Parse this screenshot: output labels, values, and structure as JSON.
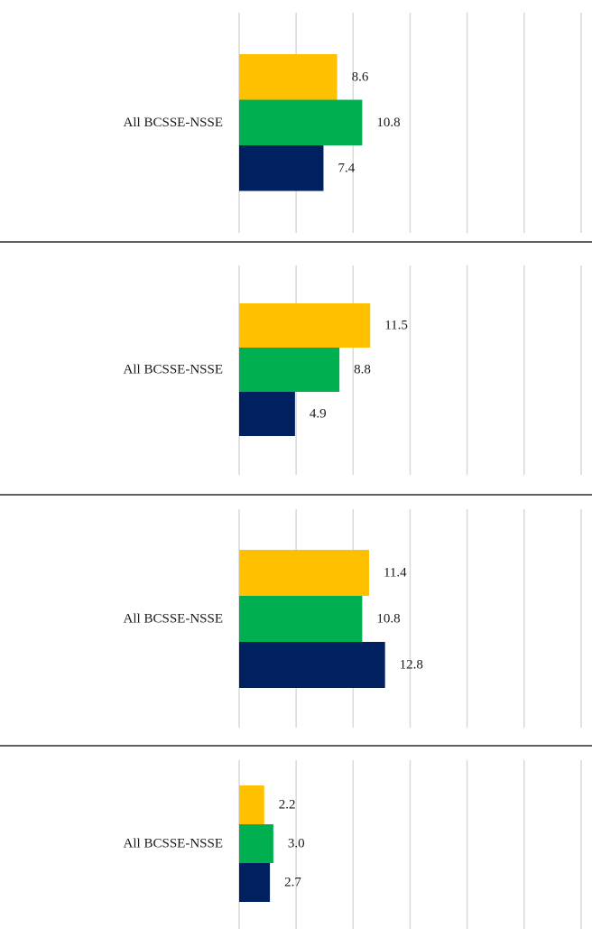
{
  "colors": {
    "series_a": "#FFC000",
    "series_b": "#00B050",
    "series_c": "#002060",
    "gridline": "#D9D9D9",
    "divider": "#000000"
  },
  "chart_data": [
    {
      "type": "bar",
      "orientation": "horizontal",
      "categories": [
        "All BCSSE-NSSE"
      ],
      "series": [
        {
          "values": [
            8.6
          ],
          "color": "#FFC000"
        },
        {
          "values": [
            10.8
          ],
          "color": "#00B050"
        },
        {
          "values": [
            7.4
          ],
          "color": "#002060"
        }
      ],
      "data_labels": [
        "8.6",
        "10.8",
        "7.4"
      ],
      "xlim": [
        0,
        30
      ],
      "grid": true,
      "legend": "none"
    },
    {
      "type": "bar",
      "orientation": "horizontal",
      "categories": [
        "All BCSSE-NSSE"
      ],
      "series": [
        {
          "values": [
            11.5
          ],
          "color": "#FFC000"
        },
        {
          "values": [
            8.8
          ],
          "color": "#00B050"
        },
        {
          "values": [
            4.9
          ],
          "color": "#002060"
        }
      ],
      "data_labels": [
        "11.5",
        "8.8",
        "4.9"
      ],
      "xlim": [
        0,
        30
      ],
      "grid": true,
      "legend": "none"
    },
    {
      "type": "bar",
      "orientation": "horizontal",
      "categories": [
        "All BCSSE-NSSE"
      ],
      "series": [
        {
          "values": [
            11.4
          ],
          "color": "#FFC000"
        },
        {
          "values": [
            10.8
          ],
          "color": "#00B050"
        },
        {
          "values": [
            12.8
          ],
          "color": "#002060"
        }
      ],
      "data_labels": [
        "11.4",
        "10.8",
        "12.8"
      ],
      "xlim": [
        0,
        30
      ],
      "grid": true,
      "legend": "none"
    },
    {
      "type": "bar",
      "orientation": "horizontal",
      "categories": [
        "All BCSSE-NSSE"
      ],
      "series": [
        {
          "values": [
            2.2
          ],
          "color": "#FFC000"
        },
        {
          "values": [
            3.0
          ],
          "color": "#00B050"
        },
        {
          "values": [
            2.7
          ],
          "color": "#002060"
        }
      ],
      "data_labels": [
        "2.2",
        "3.0",
        "2.7"
      ],
      "xlim": [
        0,
        30
      ],
      "grid": true,
      "legend": "none"
    }
  ]
}
